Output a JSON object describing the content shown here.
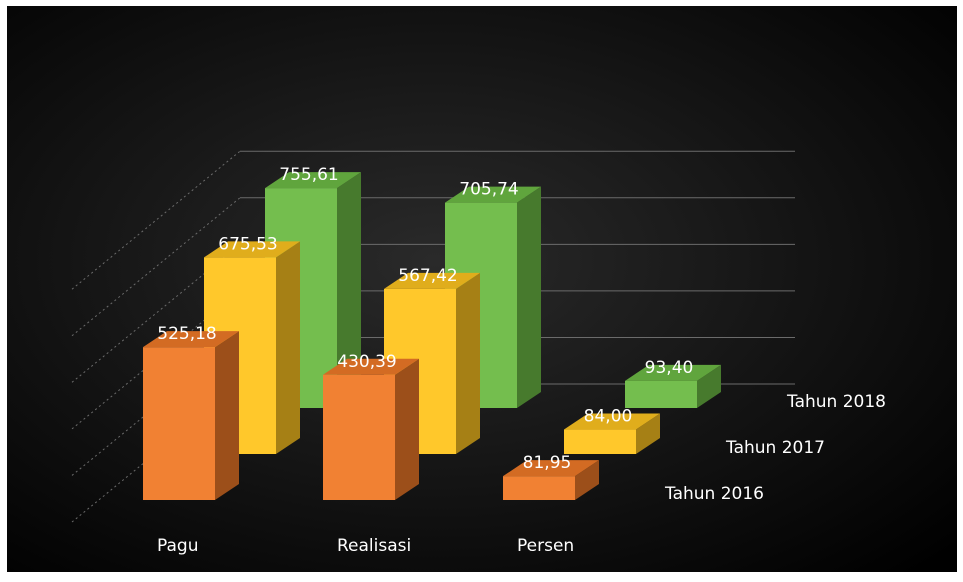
{
  "chart_data": {
    "type": "bar",
    "subtype": "3d-clustered-column",
    "categories": [
      "Pagu",
      "Realisasi",
      "Persen"
    ],
    "series": [
      {
        "name": "Tahun 2016",
        "values": [
          525.18,
          430.39,
          81.95
        ],
        "labels": [
          "525,18",
          "430,39",
          "81,95"
        ],
        "color": "#f07a28"
      },
      {
        "name": "Tahun 2017",
        "values": [
          675.53,
          567.42,
          84.0
        ],
        "labels": [
          "675,53",
          "567,42",
          "84,00"
        ],
        "color": "#ffc520"
      },
      {
        "name": "Tahun 2018",
        "values": [
          755.61,
          705.74,
          93.4
        ],
        "labels": [
          "755,61",
          "705,74",
          "93,40"
        ],
        "color": "#6dbb45"
      }
    ],
    "ylim": [
      0,
      800
    ],
    "grid": true,
    "legend": "series labels along the depth axis, right side",
    "title": "",
    "xlabel": "",
    "ylabel": ""
  },
  "colors": {
    "background_center": "#1e1e1e",
    "background_edge": "#000000",
    "gridline": "#6b6b6b",
    "label_text": "#ffffff"
  }
}
